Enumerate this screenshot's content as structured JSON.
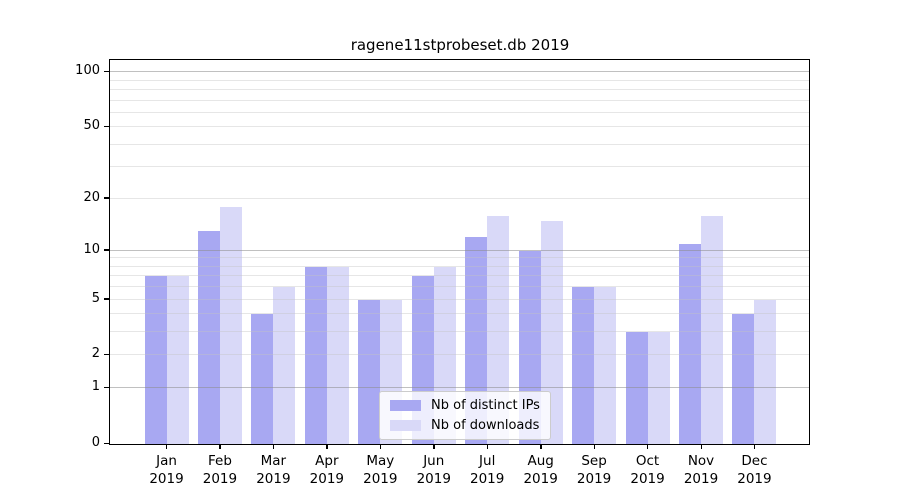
{
  "title": "ragene11stprobeset.db 2019",
  "colors": {
    "distinct_ips": "#a8a8f2",
    "downloads": "#d9d9f8",
    "axis": "#000000",
    "major_grid": "#c8c8c8",
    "minor_grid": "#e8e8e8",
    "legend_border": "#cccccc"
  },
  "legend": {
    "items": [
      {
        "label": "Nb of distinct IPs",
        "color_key": "distinct_ips"
      },
      {
        "label": "Nb of downloads",
        "color_key": "downloads"
      }
    ]
  },
  "chart_data": {
    "type": "bar",
    "title": "ragene11stprobeset.db 2019",
    "categories": [
      "Jan",
      "Feb",
      "Mar",
      "Apr",
      "May",
      "Jun",
      "Jul",
      "Aug",
      "Sep",
      "Oct",
      "Nov",
      "Dec"
    ],
    "year": "2019",
    "series": [
      {
        "name": "Nb of distinct IPs",
        "values": [
          7,
          13,
          4,
          8,
          5,
          7,
          12,
          10,
          6,
          3,
          11,
          4
        ]
      },
      {
        "name": "Nb of downloads",
        "values": [
          7,
          18,
          6,
          8,
          5,
          8,
          16,
          15,
          6,
          3,
          16,
          5
        ]
      }
    ],
    "xlabel": "",
    "ylabel": "",
    "yscale": "log1p",
    "ylim": [
      0,
      115
    ],
    "y_tick_values": [
      0,
      1,
      2,
      5,
      10,
      20,
      50,
      100
    ],
    "y_major_gridlines": [
      1,
      10,
      100
    ],
    "y_minor_gridlines": [
      2,
      3,
      4,
      5,
      6,
      7,
      8,
      9,
      20,
      30,
      40,
      50,
      60,
      70,
      80,
      90
    ],
    "grid": "on, drawn above bars",
    "legend_position": "lower center inside plot"
  }
}
